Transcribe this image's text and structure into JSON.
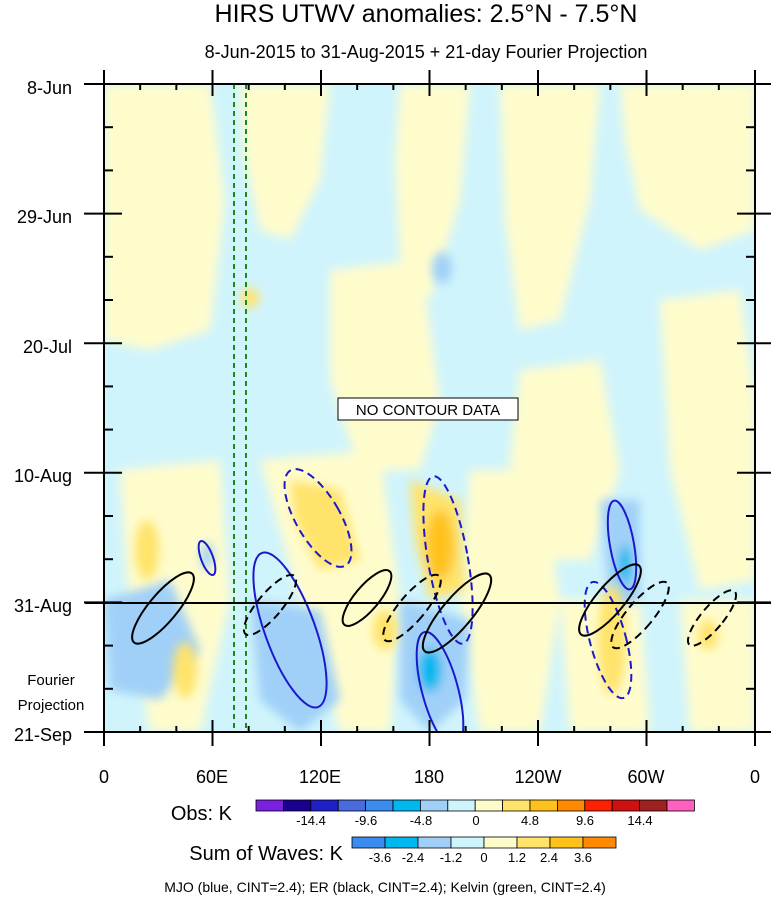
{
  "chart_data": {
    "type": "heatmap",
    "title": "HIRS UTWV anomalies: 2.5°N - 7.5°N",
    "subtitle": "8-Jun-2015 to 31-Aug-2015 + 21-day Fourier Projection",
    "no_data_label": "NO CONTOUR DATA",
    "y_ticks": [
      "8-Jun",
      "29-Jun",
      "20-Jul",
      "10-Aug",
      "31-Aug",
      "21-Sep"
    ],
    "x_ticks": [
      "0",
      "60E",
      "120E",
      "180",
      "120W",
      "60W",
      "0"
    ],
    "x_range_deg_east": [
      0,
      360
    ],
    "y_range_days": [
      0,
      105
    ],
    "projection_start_day": 84,
    "projection_label": [
      "Fourier",
      "Projection"
    ],
    "obs_legend": {
      "label": "Obs: K",
      "colors": [
        "#7a20e0",
        "#1a0090",
        "#2020c8",
        "#4a6ae0",
        "#3a8cf0",
        "#00b8f0",
        "#a0d0f8",
        "#d0f4fc",
        "#fffccc",
        "#ffe36a",
        "#ffc21a",
        "#ff8a00",
        "#ff2000",
        "#d01010",
        "#a02020",
        "#ff60c0"
      ],
      "tick_labels": [
        "-14.4",
        "-9.6",
        "-4.8",
        "0",
        "4.8",
        "9.6",
        "14.4"
      ]
    },
    "waves_legend": {
      "label": "Sum of Waves: K",
      "colors": [
        "#3a8cf0",
        "#00b8f0",
        "#a0d0f8",
        "#d0f4fc",
        "#fffccc",
        "#ffe36a",
        "#ffc21a",
        "#ff8a00"
      ],
      "tick_labels": [
        "-3.6",
        "-2.4",
        "-1.2",
        "0",
        "1.2",
        "2.4",
        "3.6"
      ]
    },
    "contour_note": "MJO (blue, CINT=2.4); ER (black, CINT=2.4); Kelvin (green, CINT=2.4)",
    "wave_colors": {
      "MJO": "#1a1acc",
      "ER": "#000000",
      "Kelvin": "#1a8a1a"
    }
  }
}
